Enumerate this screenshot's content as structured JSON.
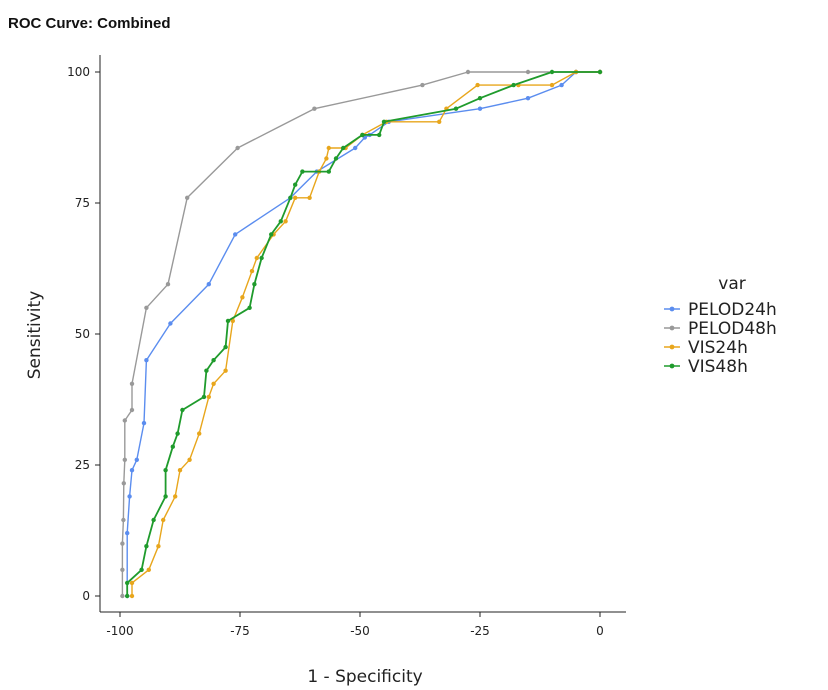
{
  "chart_data": {
    "type": "line",
    "title": "ROC Curve: Combined",
    "xlabel": "1 - Specificity",
    "ylabel": "Sensitivity",
    "xlim": [
      -100,
      0
    ],
    "ylim": [
      0,
      100
    ],
    "x_ticks": [
      -100,
      -75,
      -50,
      -25,
      0
    ],
    "y_ticks": [
      0,
      25,
      50,
      75,
      100
    ],
    "grid": false,
    "legend": {
      "title": "var",
      "position": "right"
    },
    "series": [
      {
        "name": "PELOD24h",
        "color": "#5b8def",
        "points": [
          [
            -98.5,
            0
          ],
          [
            -98.5,
            12
          ],
          [
            -98,
            19
          ],
          [
            -97.5,
            24
          ],
          [
            -96.5,
            26
          ],
          [
            -95,
            33
          ],
          [
            -94.5,
            45
          ],
          [
            -89.5,
            52
          ],
          [
            -81.5,
            59.5
          ],
          [
            -76,
            69
          ],
          [
            -64.5,
            76
          ],
          [
            -59,
            81
          ],
          [
            -51,
            85.5
          ],
          [
            -49,
            87.5
          ],
          [
            -48,
            88
          ],
          [
            -44,
            90.5
          ],
          [
            -25,
            93
          ],
          [
            -15,
            95
          ],
          [
            -8,
            97.5
          ],
          [
            -5,
            100
          ],
          [
            0,
            100
          ]
        ]
      },
      {
        "name": "PELOD48h",
        "color": "#999999",
        "points": [
          [
            -99.5,
            0
          ],
          [
            -99.5,
            5
          ],
          [
            -99.5,
            10
          ],
          [
            -99.3,
            14.5
          ],
          [
            -99.2,
            21.5
          ],
          [
            -99,
            26
          ],
          [
            -99,
            33.5
          ],
          [
            -97.5,
            35.5
          ],
          [
            -97.5,
            40.5
          ],
          [
            -94.5,
            55
          ],
          [
            -90,
            59.5
          ],
          [
            -86,
            76
          ],
          [
            -75.5,
            85.5
          ],
          [
            -59.5,
            93
          ],
          [
            -37,
            97.5
          ],
          [
            -27.5,
            100
          ],
          [
            -15,
            100
          ],
          [
            -5,
            100
          ],
          [
            0,
            100
          ]
        ]
      },
      {
        "name": "VIS24h",
        "color": "#e8a61c",
        "points": [
          [
            -97.5,
            0
          ],
          [
            -97.5,
            2.5
          ],
          [
            -94,
            5
          ],
          [
            -92,
            9.5
          ],
          [
            -91,
            14.5
          ],
          [
            -88.5,
            19
          ],
          [
            -87.5,
            24
          ],
          [
            -85.5,
            26
          ],
          [
            -83.5,
            31
          ],
          [
            -81.5,
            38
          ],
          [
            -80.5,
            40.5
          ],
          [
            -78,
            43
          ],
          [
            -76.5,
            52.5
          ],
          [
            -74.5,
            57
          ],
          [
            -72.5,
            62
          ],
          [
            -71.5,
            64.5
          ],
          [
            -68,
            69
          ],
          [
            -65.5,
            71.5
          ],
          [
            -63.5,
            76
          ],
          [
            -60.5,
            76
          ],
          [
            -58.5,
            81
          ],
          [
            -57,
            83.5
          ],
          [
            -56.5,
            85.5
          ],
          [
            -53,
            85.5
          ],
          [
            -49.5,
            88
          ],
          [
            -44.5,
            90.5
          ],
          [
            -33.5,
            90.5
          ],
          [
            -32,
            93
          ],
          [
            -25.5,
            97.5
          ],
          [
            -17,
            97.5
          ],
          [
            -10,
            97.5
          ],
          [
            -5,
            100
          ],
          [
            0,
            100
          ]
        ]
      },
      {
        "name": "VIS48h",
        "color": "#1f9b2c",
        "points": [
          [
            -98.5,
            0
          ],
          [
            -98.5,
            2.5
          ],
          [
            -95.5,
            5
          ],
          [
            -94.5,
            9.5
          ],
          [
            -93,
            14.5
          ],
          [
            -90.5,
            19
          ],
          [
            -90.5,
            24
          ],
          [
            -89,
            28.5
          ],
          [
            -88,
            31
          ],
          [
            -87,
            35.5
          ],
          [
            -82.5,
            38
          ],
          [
            -82,
            43
          ],
          [
            -80.5,
            45
          ],
          [
            -78,
            47.5
          ],
          [
            -77.5,
            52.5
          ],
          [
            -73,
            55
          ],
          [
            -72,
            59.5
          ],
          [
            -70.5,
            64.5
          ],
          [
            -68.5,
            69
          ],
          [
            -66.5,
            71.5
          ],
          [
            -64.5,
            76
          ],
          [
            -63.5,
            78.5
          ],
          [
            -62,
            81
          ],
          [
            -56.5,
            81
          ],
          [
            -55,
            83.5
          ],
          [
            -53.5,
            85.5
          ],
          [
            -49.5,
            88
          ],
          [
            -46,
            88
          ],
          [
            -45,
            90.5
          ],
          [
            -30,
            93
          ],
          [
            -25,
            95
          ],
          [
            -18,
            97.5
          ],
          [
            -10,
            100
          ],
          [
            0,
            100
          ]
        ]
      }
    ]
  }
}
